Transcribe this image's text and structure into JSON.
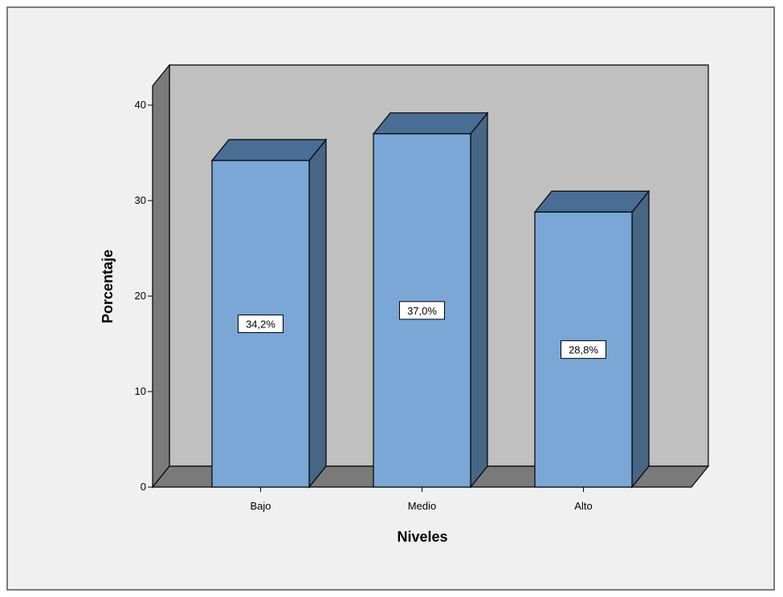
{
  "chart_data": {
    "type": "bar",
    "style": "3d",
    "categories": [
      "Bajo",
      "Medio",
      "Alto"
    ],
    "values": [
      34.2,
      37.0,
      28.8
    ],
    "data_labels": [
      "34,2%",
      "37,0%",
      "28,8%"
    ],
    "title": "",
    "xlabel": "Niveles",
    "ylabel": "Porcentaje",
    "ylim": [
      0,
      40
    ],
    "yticks": [
      0,
      10,
      20,
      30,
      40
    ],
    "grid": false,
    "legend": "none",
    "colors": {
      "bar_front": "#7aa7d6",
      "bar_top": "#4a6d96",
      "bar_side": "#476585",
      "back_wall": "#c0c0c0",
      "side_wall": "#7a7a7a",
      "floor": "#7a7a7a",
      "frame_bg": "#f0f0f0"
    }
  }
}
